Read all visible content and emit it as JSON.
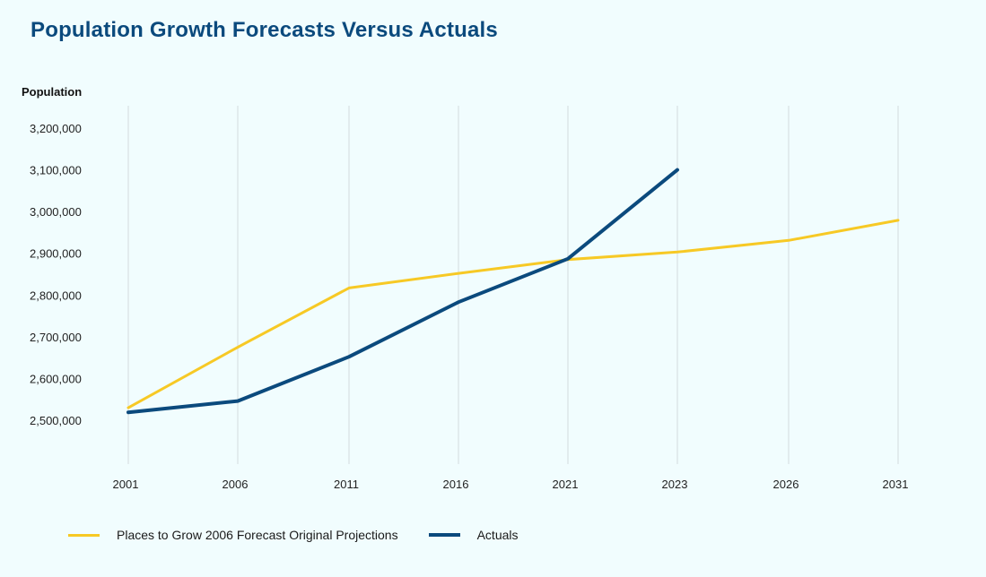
{
  "title": "Population Growth Forecasts Versus Actuals",
  "colors": {
    "forecast": "#f7c925",
    "actuals": "#0b4a7d",
    "grid": "#d3dcdd",
    "background": "#f1fdfe"
  },
  "chart_data": {
    "type": "line",
    "title": "Population Growth Forecasts Versus Actuals",
    "ylabel": "Population",
    "xlabel": "",
    "categories": [
      "2001",
      "2006",
      "2011",
      "2016",
      "2021",
      "2023",
      "2026",
      "2031"
    ],
    "y_ticks": [
      2500000,
      2600000,
      2700000,
      2800000,
      2900000,
      3000000,
      3100000,
      3200000
    ],
    "y_tick_labels": [
      "2,500,000",
      "2,600,000",
      "2,700,000",
      "2,800,000",
      "2,900,000",
      "3,000,000",
      "3,100,000",
      "3,200,000"
    ],
    "ylim": [
      2400000,
      3255000
    ],
    "grid": "vertical",
    "series": [
      {
        "name": "Places to Grow 2006 Forecast Original Projections",
        "color_key": "forecast",
        "values": [
          2530000,
          2675000,
          2817000,
          2852000,
          2885000,
          2903000,
          2931000,
          2979000
        ]
      },
      {
        "name": "Actuals",
        "color_key": "actuals",
        "values": [
          2519000,
          2546000,
          2652000,
          2783000,
          2887000,
          3100000,
          null,
          null
        ]
      }
    ],
    "legend": "bottom-left"
  }
}
